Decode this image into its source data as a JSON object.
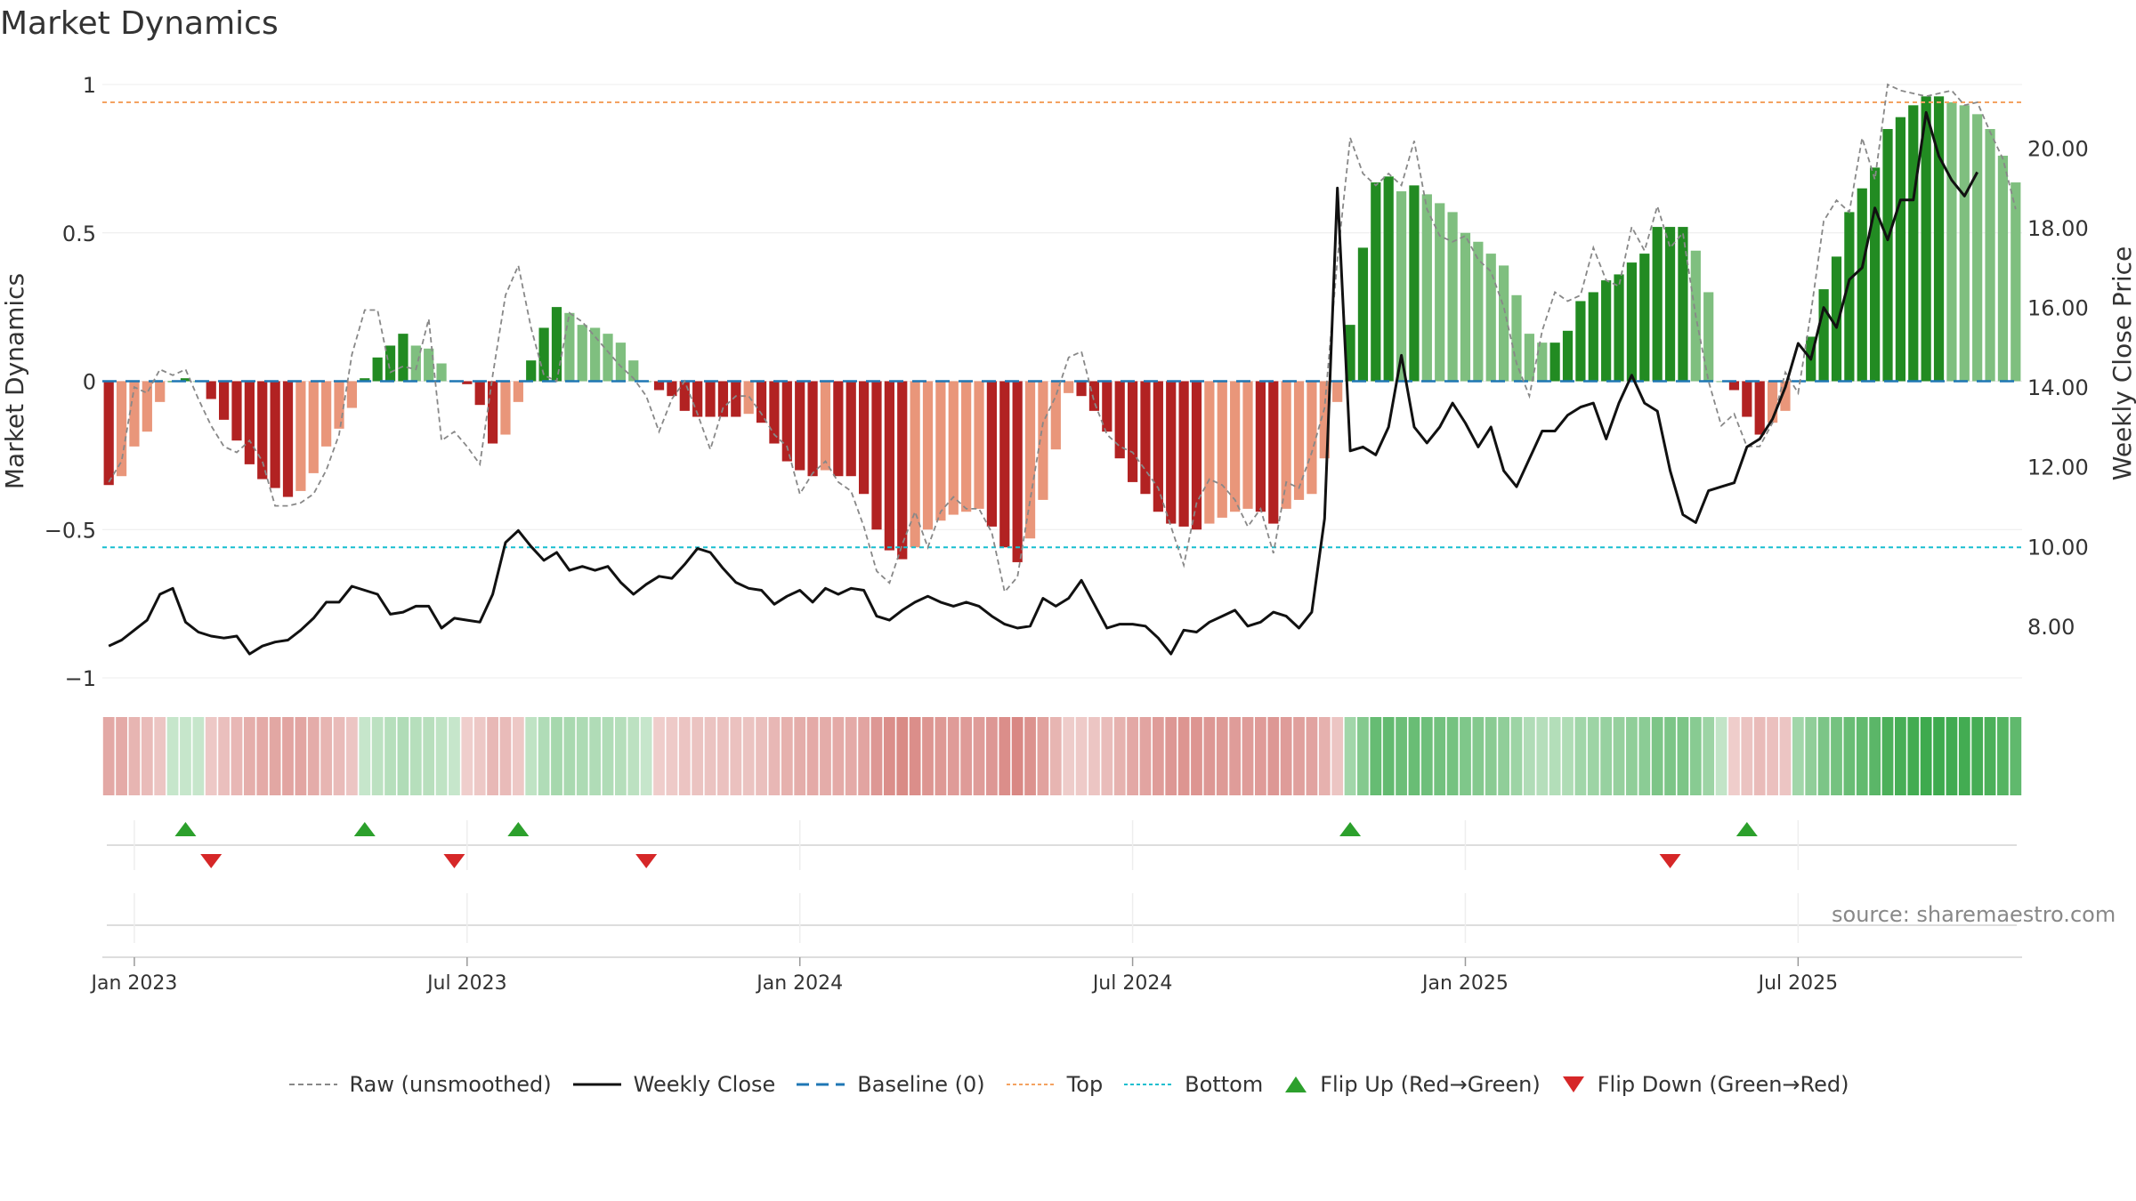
{
  "title": "Market Dynamics",
  "source": "source: sharemaestro.com",
  "colors": {
    "strong_red": "#b22222",
    "light_red": "#e9967a",
    "strong_green": "#228b22",
    "light_green": "#7fbf7f",
    "raw": "#888888",
    "close": "#111111",
    "baseline": "#1f77b4",
    "top": "#f4a261",
    "bottom": "#17becf",
    "flip_up": "#2ca02c",
    "flip_down": "#d62728"
  },
  "chart_data": {
    "type": "bar",
    "title": "Market Dynamics",
    "ylabel": "Market Dynamics",
    "y2label": "Weekly Close Price",
    "ylim": [
      -1,
      1
    ],
    "y2lim": [
      6.7,
      21.6
    ],
    "yticks": [
      "1",
      "0.5",
      "0",
      "−0.5",
      "−1"
    ],
    "yticks_values": [
      1,
      0.5,
      0,
      -0.5,
      -1
    ],
    "y2ticks": [
      "8.00",
      "10.00",
      "12.00",
      "14.00",
      "16.00",
      "18.00",
      "20.00"
    ],
    "y2ticks_values": [
      8,
      10,
      12,
      14,
      16,
      18,
      20
    ],
    "xticks": [
      "Jan 2023",
      "Jul 2023",
      "Jan 2024",
      "Jul 2024",
      "Jan 2025",
      "Jul 2025"
    ],
    "xticks_weeks": [
      2.5,
      28.5,
      54.5,
      80.5,
      106.5,
      132.5
    ],
    "reference_lines": {
      "baseline": 0,
      "top": 0.94,
      "bottom": -0.56
    },
    "series": [
      {
        "name": "Market Dynamics",
        "values": [
          -0.35,
          -0.32,
          -0.22,
          -0.17,
          -0.07,
          0.0,
          0.01,
          0.0,
          -0.06,
          -0.13,
          -0.2,
          -0.28,
          -0.33,
          -0.36,
          -0.39,
          -0.37,
          -0.31,
          -0.22,
          -0.16,
          -0.09,
          0.01,
          0.08,
          0.12,
          0.16,
          0.12,
          0.11,
          0.06,
          0.0,
          -0.01,
          -0.08,
          -0.21,
          -0.18,
          -0.07,
          0.07,
          0.18,
          0.25,
          0.23,
          0.19,
          0.18,
          0.16,
          0.13,
          0.07,
          0.0,
          -0.03,
          -0.05,
          -0.1,
          -0.12,
          -0.12,
          -0.12,
          -0.12,
          -0.11,
          -0.14,
          -0.21,
          -0.27,
          -0.3,
          -0.32,
          -0.3,
          -0.32,
          -0.32,
          -0.38,
          -0.5,
          -0.57,
          -0.6,
          -0.56,
          -0.5,
          -0.47,
          -0.45,
          -0.44,
          -0.43,
          -0.49,
          -0.56,
          -0.61,
          -0.53,
          -0.4,
          -0.23,
          -0.04,
          -0.05,
          -0.1,
          -0.17,
          -0.26,
          -0.34,
          -0.38,
          -0.44,
          -0.48,
          -0.49,
          -0.5,
          -0.48,
          -0.46,
          -0.44,
          -0.43,
          -0.44,
          -0.48,
          -0.43,
          -0.4,
          -0.38,
          -0.26,
          -0.07,
          0.19,
          0.45,
          0.67,
          0.69,
          0.64,
          0.66,
          0.63,
          0.6,
          0.57,
          0.5,
          0.47,
          0.43,
          0.39,
          0.29,
          0.16,
          0.13,
          0.13,
          0.17,
          0.27,
          0.3,
          0.34,
          0.36,
          0.4,
          0.43,
          0.52,
          0.52,
          0.52,
          0.44,
          0.3,
          0.0,
          -0.03,
          -0.12,
          -0.18,
          -0.14,
          -0.1,
          0.0,
          0.15,
          0.31,
          0.42,
          0.57,
          0.65,
          0.72,
          0.85,
          0.89,
          0.93,
          0.96,
          0.96,
          0.94,
          0.93,
          0.9,
          0.85,
          0.76,
          0.67
        ]
      },
      {
        "name": "Raw (unsmoothed)",
        "values": [
          -0.34,
          -0.27,
          -0.02,
          -0.04,
          0.04,
          0.02,
          0.04,
          -0.06,
          -0.15,
          -0.22,
          -0.24,
          -0.2,
          -0.27,
          -0.42,
          -0.42,
          -0.41,
          -0.38,
          -0.3,
          -0.18,
          0.09,
          0.24,
          0.24,
          0.03,
          0.05,
          0.04,
          0.21,
          -0.2,
          -0.17,
          -0.22,
          -0.28,
          0.02,
          0.29,
          0.39,
          0.18,
          0.02,
          0.0,
          0.23,
          0.2,
          0.15,
          0.1,
          0.05,
          0.01,
          -0.05,
          -0.17,
          -0.06,
          0.0,
          -0.11,
          -0.23,
          -0.09,
          -0.05,
          -0.05,
          -0.11,
          -0.18,
          -0.22,
          -0.38,
          -0.31,
          -0.27,
          -0.34,
          -0.37,
          -0.49,
          -0.64,
          -0.68,
          -0.55,
          -0.44,
          -0.56,
          -0.44,
          -0.39,
          -0.43,
          -0.43,
          -0.51,
          -0.71,
          -0.66,
          -0.4,
          -0.14,
          -0.05,
          0.08,
          0.1,
          -0.07,
          -0.18,
          -0.22,
          -0.24,
          -0.3,
          -0.36,
          -0.49,
          -0.62,
          -0.41,
          -0.33,
          -0.35,
          -0.4,
          -0.49,
          -0.43,
          -0.58,
          -0.34,
          -0.36,
          -0.24,
          -0.09,
          0.41,
          0.82,
          0.7,
          0.66,
          0.7,
          0.66,
          0.81,
          0.58,
          0.49,
          0.47,
          0.49,
          0.41,
          0.37,
          0.25,
          0.06,
          -0.05,
          0.17,
          0.3,
          0.27,
          0.29,
          0.45,
          0.34,
          0.32,
          0.52,
          0.44,
          0.59,
          0.45,
          0.5,
          0.22,
          0.0,
          -0.15,
          -0.11,
          -0.22,
          -0.22,
          -0.14,
          0.03,
          -0.04,
          0.23,
          0.54,
          0.61,
          0.57,
          0.82,
          0.68,
          1.0,
          0.98,
          0.97,
          0.96,
          0.97,
          0.98,
          0.93,
          0.94,
          0.84,
          0.75,
          0.58
        ]
      },
      {
        "name": "Weekly Close",
        "values": [
          7.5,
          7.65,
          7.9,
          8.15,
          8.8,
          8.95,
          8.1,
          7.85,
          7.75,
          7.7,
          7.75,
          7.3,
          7.5,
          7.6,
          7.65,
          7.9,
          8.2,
          8.6,
          8.6,
          9.0,
          8.9,
          8.8,
          8.3,
          8.35,
          8.5,
          8.5,
          7.95,
          8.2,
          8.15,
          8.1,
          8.8,
          10.1,
          10.4,
          10.0,
          9.65,
          9.85,
          9.4,
          9.5,
          9.4,
          9.5,
          9.1,
          8.8,
          9.05,
          9.25,
          9.2,
          9.55,
          9.95,
          9.85,
          9.45,
          9.1,
          8.95,
          8.9,
          8.55,
          8.75,
          8.9,
          8.6,
          8.95,
          8.8,
          8.95,
          8.9,
          8.25,
          8.15,
          8.4,
          8.6,
          8.75,
          8.6,
          8.5,
          8.6,
          8.5,
          8.25,
          8.05,
          7.95,
          8.0,
          8.7,
          8.5,
          8.7,
          9.15,
          8.55,
          7.95,
          8.05,
          8.05,
          8.0,
          7.7,
          7.3,
          7.9,
          7.85,
          8.1,
          8.25,
          8.4,
          8.0,
          8.1,
          8.35,
          8.25,
          7.95,
          8.35,
          10.7,
          19.0,
          12.4,
          12.5,
          12.3,
          13.0,
          14.8,
          13.0,
          12.6,
          13.0,
          13.6,
          13.1,
          12.5,
          13.0,
          11.9,
          11.5,
          12.2,
          12.9,
          12.9,
          13.3,
          13.5,
          13.6,
          12.7,
          13.6,
          14.3,
          13.6,
          13.4,
          11.9,
          10.8,
          10.6,
          11.4,
          11.5,
          11.6,
          12.5,
          12.7,
          13.2,
          14.0,
          15.1,
          14.7,
          16.0,
          15.5,
          16.7,
          17.0,
          18.5,
          17.7,
          18.7,
          18.7,
          20.9,
          19.8,
          19.2,
          18.8,
          19.4
        ]
      }
    ],
    "strip_strength": [
      0.35,
      0.33,
      0.25,
      0.2,
      0.12,
      0.05,
      0.05,
      0.05,
      0.1,
      0.17,
      0.23,
      0.3,
      0.33,
      0.36,
      0.38,
      0.37,
      0.32,
      0.25,
      0.2,
      0.12,
      0.05,
      0.12,
      0.16,
      0.2,
      0.16,
      0.15,
      0.1,
      0.05,
      0.05,
      0.1,
      0.22,
      0.2,
      0.1,
      0.1,
      0.2,
      0.27,
      0.25,
      0.22,
      0.2,
      0.2,
      0.17,
      0.12,
      0.05,
      0.06,
      0.08,
      0.13,
      0.14,
      0.14,
      0.15,
      0.15,
      0.14,
      0.17,
      0.23,
      0.28,
      0.31,
      0.33,
      0.32,
      0.33,
      0.33,
      0.38,
      0.48,
      0.55,
      0.58,
      0.55,
      0.5,
      0.47,
      0.45,
      0.45,
      0.44,
      0.48,
      0.55,
      0.6,
      0.52,
      0.4,
      0.25,
      0.07,
      0.08,
      0.12,
      0.19,
      0.27,
      0.35,
      0.38,
      0.44,
      0.48,
      0.5,
      0.5,
      0.48,
      0.46,
      0.44,
      0.44,
      0.45,
      0.48,
      0.44,
      0.41,
      0.39,
      0.28,
      0.12,
      0.3,
      0.5,
      0.7,
      0.72,
      0.66,
      0.68,
      0.65,
      0.62,
      0.6,
      0.53,
      0.5,
      0.46,
      0.42,
      0.33,
      0.2,
      0.17,
      0.18,
      0.21,
      0.3,
      0.33,
      0.37,
      0.38,
      0.42,
      0.45,
      0.55,
      0.55,
      0.55,
      0.47,
      0.33,
      0.08,
      0.06,
      0.14,
      0.2,
      0.16,
      0.12,
      0.3,
      0.42,
      0.55,
      0.6,
      0.68,
      0.73,
      0.78,
      0.88,
      0.91,
      0.94,
      0.97,
      0.97,
      0.95,
      0.94,
      0.92,
      0.88,
      0.82,
      0.74
    ],
    "flip_up_weeks": [
      6,
      20,
      32,
      97,
      128
    ],
    "flip_down_weeks": [
      8,
      27,
      42,
      122
    ]
  },
  "legend": [
    {
      "label": "Raw (unsmoothed)",
      "icon": "dashed-grey-line"
    },
    {
      "label": "Weekly Close",
      "icon": "solid-black-line"
    },
    {
      "label": "Baseline (0)",
      "icon": "dashed-blue-line"
    },
    {
      "label": "Top",
      "icon": "dotted-orange-line"
    },
    {
      "label": "Bottom",
      "icon": "dotted-cyan-line"
    },
    {
      "label": "Flip Up (Red→Green)",
      "icon": "triangle-up-green"
    },
    {
      "label": "Flip Down (Green→Red)",
      "icon": "triangle-down-red"
    }
  ]
}
